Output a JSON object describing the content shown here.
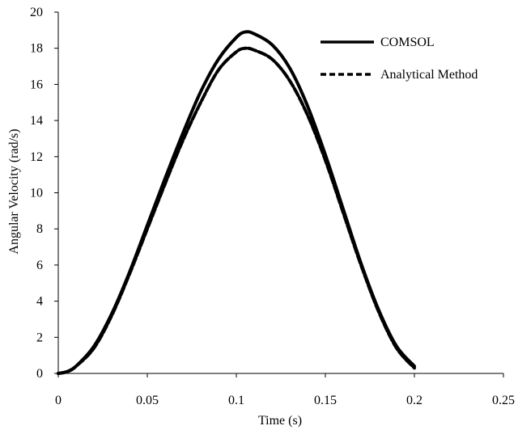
{
  "chart_data": {
    "type": "line",
    "title": "",
    "xlabel": "Time (s)",
    "ylabel": "Angular Velocity (rad/s)",
    "xlim": [
      0,
      0.25
    ],
    "ylim": [
      0,
      20
    ],
    "xticks": [
      0,
      0.05,
      0.1,
      0.15,
      0.2,
      0.25
    ],
    "xtick_labels": [
      "0",
      "0.05",
      "0.1",
      "0.15",
      "0.2",
      "0.25"
    ],
    "yticks": [
      0,
      2,
      4,
      6,
      8,
      10,
      12,
      14,
      16,
      18,
      20
    ],
    "ytick_labels": [
      "0",
      "2",
      "4",
      "6",
      "8",
      "10",
      "12",
      "14",
      "16",
      "18",
      "20"
    ],
    "grid": false,
    "legend_position": "top-right",
    "series": [
      {
        "name": "COMSOL",
        "line_style": "solid",
        "color": "#000000",
        "x": [
          0,
          0.005,
          0.01,
          0.02,
          0.03,
          0.04,
          0.05,
          0.06,
          0.07,
          0.08,
          0.09,
          0.1,
          0.105,
          0.11,
          0.12,
          0.13,
          0.14,
          0.15,
          0.16,
          0.17,
          0.18,
          0.19,
          0.2
        ],
        "y": [
          0,
          0.1,
          0.4,
          1.5,
          3.3,
          5.6,
          8.2,
          10.8,
          13.3,
          15.6,
          17.4,
          18.6,
          18.9,
          18.8,
          18.2,
          16.9,
          14.8,
          12.1,
          9.1,
          6.1,
          3.5,
          1.5,
          0.4
        ]
      },
      {
        "name": "Analytical Method",
        "line_style": "dashed",
        "color": "#000000",
        "x": [
          0,
          0.005,
          0.01,
          0.02,
          0.03,
          0.04,
          0.05,
          0.06,
          0.07,
          0.08,
          0.09,
          0.1,
          0.105,
          0.11,
          0.12,
          0.13,
          0.14,
          0.15,
          0.16,
          0.17,
          0.18,
          0.19,
          0.2
        ],
        "y": [
          0,
          0.1,
          0.4,
          1.4,
          3.2,
          5.5,
          8.0,
          10.5,
          12.9,
          15.0,
          16.8,
          17.8,
          18.0,
          17.9,
          17.4,
          16.2,
          14.3,
          11.8,
          8.9,
          6.0,
          3.4,
          1.4,
          0.3
        ]
      }
    ]
  }
}
